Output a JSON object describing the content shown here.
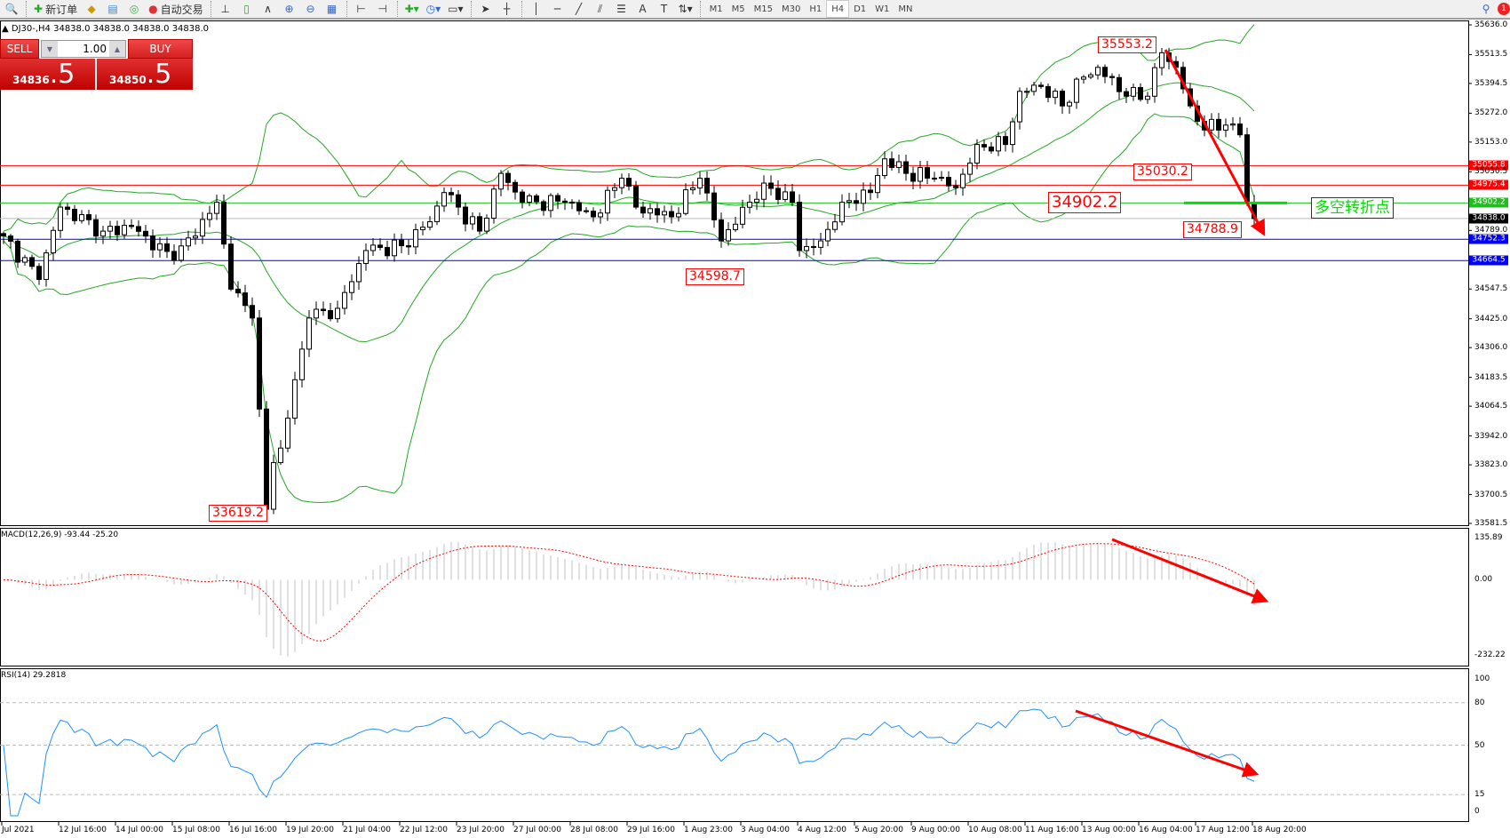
{
  "toolbar": {
    "new_order": "新订单",
    "auto_trading": "自动交易",
    "timeframes": [
      "M1",
      "M5",
      "M15",
      "M30",
      "H1",
      "H4",
      "D1",
      "W1",
      "MN"
    ],
    "active_timeframe": "H4",
    "notification_count": "1"
  },
  "chart_header": "DJ30-,H4  34838.0 34838.0 34838.0 34838.0",
  "trade_panel": {
    "sell_label": "SELL",
    "buy_label": "BUY",
    "lot": "1.00",
    "sell_price_main": "34836",
    "sell_price_big": ".5",
    "buy_price_main": "34850",
    "buy_price_big": ".5"
  },
  "colors": {
    "up": "#ffffff",
    "down": "#000000",
    "bands": "#22a822",
    "macd_hist": "#c0c0c0",
    "macd_signal": "#ff0000",
    "rsi": "#1e90ff",
    "annotation": "#ff0000",
    "pivot": "#00e000"
  },
  "chart_data": {
    "type": "candlestick",
    "symbol": "DJ30-",
    "timeframe": "H4",
    "ylim": [
      33581.5,
      35636.0
    ],
    "y_ticks": [
      "35636.0",
      "35513.5",
      "35394.5",
      "35272.0",
      "35153.0",
      "35030.5",
      "34789.0",
      "34547.5",
      "34425.0",
      "34306.0",
      "34183.5",
      "34064.5",
      "33942.0",
      "33823.0",
      "33700.5",
      "33581.5"
    ],
    "x_ticks": [
      "Jul 2021",
      "12 Jul 16:00",
      "14 Jul 00:00",
      "15 Jul 08:00",
      "16 Jul 16:00",
      "19 Jul 20:00",
      "21 Jul 04:00",
      "22 Jul 12:00",
      "23 Jul 20:00",
      "27 Jul 00:00",
      "28 Jul 08:00",
      "29 Jul 16:00",
      "1 Aug 23:00",
      "3 Aug 04:00",
      "4 Aug 12:00",
      "5 Aug 20:00",
      "9 Aug 00:00",
      "10 Aug 08:00",
      "11 Aug 16:00",
      "13 Aug 00:00",
      "16 Aug 04:00",
      "17 Aug 12:00",
      "18 Aug 20:00"
    ],
    "close_path": [
      [
        0,
        34766
      ],
      [
        5,
        34587
      ],
      [
        8,
        34885
      ],
      [
        14,
        34786
      ],
      [
        18,
        34805
      ],
      [
        24,
        34666
      ],
      [
        30,
        34905
      ],
      [
        32,
        34547
      ],
      [
        35,
        34428
      ],
      [
        37,
        33640
      ],
      [
        38,
        33832
      ],
      [
        39,
        33892
      ],
      [
        43,
        34428
      ],
      [
        47,
        34468
      ],
      [
        51,
        34706
      ],
      [
        56,
        34726
      ],
      [
        60,
        34825
      ],
      [
        62,
        34945
      ],
      [
        67,
        34786
      ],
      [
        70,
        35024
      ],
      [
        73,
        34905
      ],
      [
        79,
        34905
      ],
      [
        83,
        34845
      ],
      [
        87,
        35004
      ],
      [
        89,
        34885
      ],
      [
        94,
        34845
      ],
      [
        98,
        35004
      ],
      [
        101,
        34746
      ],
      [
        105,
        34905
      ],
      [
        107,
        34984
      ],
      [
        111,
        34905
      ],
      [
        112,
        34706
      ],
      [
        115,
        34746
      ],
      [
        118,
        34905
      ],
      [
        122,
        34945
      ],
      [
        124,
        35084
      ],
      [
        127,
        35024
      ],
      [
        131,
        35004
      ],
      [
        134,
        34965
      ],
      [
        137,
        35143
      ],
      [
        141,
        35143
      ],
      [
        143,
        35362
      ],
      [
        146,
        35382
      ],
      [
        149,
        35302
      ],
      [
        152,
        35421
      ],
      [
        154,
        35461
      ],
      [
        158,
        35342
      ],
      [
        161,
        35342
      ],
      [
        163,
        35521
      ],
      [
        165,
        35461
      ],
      [
        167,
        35302
      ],
      [
        169,
        35203
      ],
      [
        172,
        35223
      ],
      [
        174,
        35183
      ],
      [
        175,
        34905
      ],
      [
        176,
        34838
      ]
    ],
    "levels": [
      {
        "value": "35055.8",
        "color": "#ff0000"
      },
      {
        "value": "34975.4",
        "color": "#ff0000"
      },
      {
        "value": "34902.2",
        "color": "#22bb22"
      },
      {
        "value": "34838.0",
        "color": "#000000"
      },
      {
        "value": "34752.3",
        "color": "#0000ff"
      },
      {
        "value": "34664.5",
        "color": "#0000ff"
      }
    ],
    "annotations": [
      "35553.2",
      "35030.2",
      "34902.2",
      "34788.9",
      "34598.7",
      "33619.2"
    ],
    "pivot_label": "多空转折点",
    "indicators": {
      "bollinger": "20,2",
      "macd": {
        "label": "MACD(12,26,9) -93.44 -25.20",
        "ylim": [
          -232.22,
          135.89
        ],
        "ticks": [
          "135.89",
          "0.00",
          "-232.22"
        ]
      },
      "rsi": {
        "label": "RSI(14) 29.2818",
        "ticks": [
          "100",
          "80",
          "50",
          "15",
          "0"
        ],
        "levels": [
          80,
          50,
          15
        ]
      }
    }
  }
}
